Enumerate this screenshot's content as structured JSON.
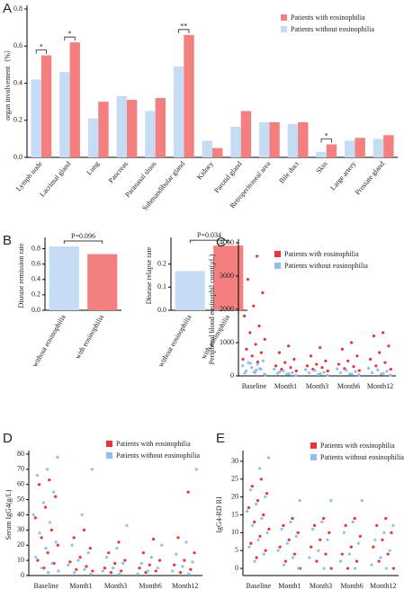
{
  "chart_data": [
    {
      "type": "bar",
      "panel_label": "A",
      "ylabel": "organ involvement（%）",
      "categories": [
        "Lymph node",
        "Lacrimal gland",
        "Lung",
        "Pancreas",
        "Paranasal sinus",
        "Submandibular gland",
        "Kidney",
        "Parotid gland",
        "Retroperitoneal area",
        "Bile duct",
        "Skin",
        "Large artery",
        "Prostate gland"
      ],
      "significance": [
        "*",
        "*",
        null,
        null,
        null,
        "**",
        null,
        null,
        null,
        null,
        "*",
        null,
        null
      ],
      "series": [
        {
          "name": "Patients with eosinophilia",
          "color": "#f47f80",
          "values": [
            0.55,
            0.62,
            0.3,
            0.31,
            0.32,
            0.66,
            0.05,
            0.25,
            0.19,
            0.19,
            0.07,
            0.105,
            0.12
          ]
        },
        {
          "name": "Patients without eosinophilia",
          "color": "#c6dcf5",
          "values": [
            0.42,
            0.46,
            0.21,
            0.33,
            0.25,
            0.49,
            0.09,
            0.165,
            0.19,
            0.18,
            0.03,
            0.09,
            0.1
          ]
        }
      ],
      "ylim": [
        0,
        0.8
      ],
      "yticks": [
        {
          "value": 0,
          "label": "0.0"
        },
        {
          "value": 0.2,
          "label": "0.2"
        },
        {
          "value": 0.4,
          "label": "0.4"
        },
        {
          "value": 0.6,
          "label": "0.6"
        },
        {
          "value": 0.8,
          "label": "0.8"
        }
      ],
      "legend": "upper right"
    },
    {
      "type": "bar",
      "panel_label": "B",
      "ylabel": "Disease remission rate",
      "annotation": "P=0.096",
      "categories": [
        "without eosinophilia",
        "with eosinophilia"
      ],
      "values": [
        0.83,
        0.73
      ],
      "colors": [
        "#c6dcf5",
        "#f47f80"
      ],
      "ylim": [
        0,
        0.9
      ],
      "yticks": [
        {
          "value": 0,
          "label": "0.0"
        },
        {
          "value": 0.2,
          "label": "0.2"
        },
        {
          "value": 0.4,
          "label": "0.4"
        },
        {
          "value": 0.6,
          "label": "0.6"
        },
        {
          "value": 0.8,
          "label": "0.8"
        }
      ]
    },
    {
      "type": "bar",
      "ylabel": "Disease relapse rate",
      "annotation": "P=0.034",
      "categories": [
        "without eosinophilia",
        "with eosinophilia"
      ],
      "values": [
        0.17,
        0.28
      ],
      "colors": [
        "#c6dcf5",
        "#f47f80"
      ],
      "ylim": [
        0,
        0.3
      ],
      "yticks": [
        {
          "value": 0,
          "label": "0.0"
        },
        {
          "value": 0.1,
          "label": "0.1"
        },
        {
          "value": 0.2,
          "label": "0.2"
        }
      ]
    },
    {
      "type": "strip",
      "panel_label": "C",
      "ylabel": "Peripheral blood eosinophil count(μL)",
      "categories": [
        "Baseline",
        "Month1",
        "Month3",
        "Month6",
        "Month12"
      ],
      "series": [
        {
          "name": "Patients with eosinophilia",
          "color": "#e8343c",
          "values": [
            [
              3600,
              2900,
              2500,
              2100,
              1800,
              1500,
              1300,
              1100,
              950,
              800,
              700,
              600,
              500,
              420
            ],
            [
              900,
              700,
              500,
              400,
              300,
              250,
              200,
              150
            ],
            [
              850,
              600,
              450,
              350,
              300,
              250,
              200,
              150
            ],
            [
              1000,
              800,
              600,
              450,
              350,
              280,
              220,
              160
            ],
            [
              1300,
              1200,
              900,
              700,
              500,
              400,
              300,
              200
            ]
          ]
        },
        {
          "name": "Patients without eosinophilia",
          "color": "#8fbff0",
          "values": [
            [
              50,
              100,
              150,
              200,
              250,
              300,
              350,
              400,
              450,
              120,
              80,
              220,
              380,
              30,
              180
            ],
            [
              20,
              50,
              80,
              100,
              150,
              200,
              60,
              120
            ],
            [
              20,
              40,
              90,
              110,
              160,
              190,
              70
            ],
            [
              30,
              60,
              90,
              130,
              170,
              210,
              50
            ],
            [
              25,
              55,
              95,
              140,
              180,
              230,
              70
            ]
          ]
        }
      ],
      "ylim": [
        0,
        4000
      ],
      "yticks": [
        0,
        1000,
        2000,
        3000,
        4000
      ],
      "legend": "upper right"
    },
    {
      "type": "strip",
      "panel_label": "D",
      "ylabel": "Serum IgG4(g/L)",
      "categories": [
        "Baseline",
        "Month1",
        "Month3",
        "Month6",
        "Month12"
      ],
      "series": [
        {
          "name": "Patients with eosinophilia",
          "color": "#e8343c",
          "values": [
            [
              63,
              60,
              52,
              45,
              38,
              30,
              25,
              20,
              15,
              10,
              8,
              5
            ],
            [
              30,
              25,
              18,
              12,
              9,
              6,
              4,
              3
            ],
            [
              22,
              15,
              10,
              8,
              5,
              3,
              2
            ],
            [
              24,
              15,
              10,
              7,
              5,
              3,
              2
            ],
            [
              55,
              25,
              15,
              10,
              7,
              4,
              2
            ]
          ]
        },
        {
          "name": "Patients without eosinophilia",
          "color": "#8fbff0",
          "values": [
            [
              78,
              70,
              66,
              55,
              48,
              40,
              35,
              28,
              22,
              18,
              12,
              8,
              5,
              3,
              2
            ],
            [
              70,
              40,
              20,
              15,
              10,
              7,
              4,
              2,
              1
            ],
            [
              33,
              18,
              12,
              8,
              5,
              3,
              1
            ],
            [
              20,
              12,
              8,
              5,
              3,
              1
            ],
            [
              70,
              22,
              14,
              9,
              6,
              3,
              1
            ]
          ]
        }
      ],
      "ylim": [
        0,
        80
      ],
      "yticks": [
        0,
        10,
        20,
        30,
        40,
        50,
        60,
        70,
        80
      ],
      "legend": "upper right"
    },
    {
      "type": "strip",
      "panel_label": "E",
      "ylabel": "IgG4-RD RI",
      "categories": [
        "Baseline",
        "Month1",
        "Month3",
        "Month6",
        "Month12"
      ],
      "series": [
        {
          "name": "Patients with eosinophilia",
          "color": "#e8343c",
          "values": [
            [
              25,
              23,
              21,
              19,
              17,
              15,
              13,
              11,
              9,
              7,
              5,
              3
            ],
            [
              14,
              12,
              10,
              8,
              6,
              4,
              2,
              0
            ],
            [
              14,
              12,
              10,
              8,
              6,
              4,
              2,
              0
            ],
            [
              14,
              12,
              9,
              6,
              4,
              2,
              0
            ],
            [
              14,
              12,
              10,
              8,
              6,
              4,
              2,
              0
            ]
          ]
        },
        {
          "name": "Patients without eosinophilia",
          "color": "#8fbff0",
          "values": [
            [
              31,
              28,
              22,
              20,
              18,
              16,
              14,
              12,
              10,
              8,
              6,
              4,
              2
            ],
            [
              19,
              13,
              11,
              9,
              7,
              5,
              3,
              1,
              0
            ],
            [
              19,
              13,
              11,
              8,
              5,
              3,
              0
            ],
            [
              19,
              13,
              10,
              7,
              4,
              2,
              0
            ],
            [
              12,
              10,
              8,
              5,
              3,
              1,
              0
            ]
          ]
        }
      ],
      "ylim": [
        -2,
        32
      ],
      "yticks": [
        0,
        5,
        10,
        15,
        20,
        25,
        30
      ],
      "legend": "upper right"
    }
  ]
}
